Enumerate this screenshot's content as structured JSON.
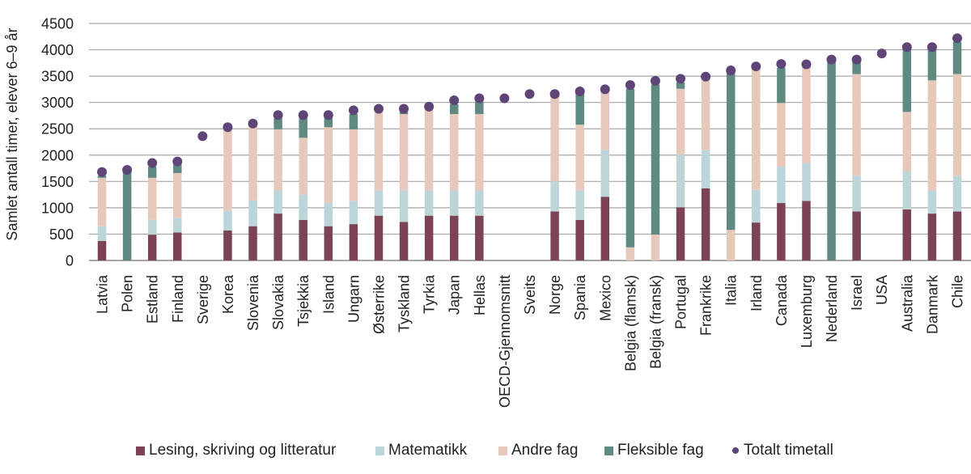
{
  "chart_data": {
    "type": "bar",
    "stacked": true,
    "title": "",
    "xlabel": "",
    "ylabel": "Samlet antall timer, elever 6–9 år",
    "ylim": [
      0,
      4500
    ],
    "yticks": [
      "0",
      "500",
      "1000",
      "1500",
      "2000",
      "2500",
      "3000",
      "3500",
      "4000",
      "4500"
    ],
    "ytick_values": [
      0,
      500,
      1000,
      1500,
      2000,
      2500,
      3000,
      3500,
      4000,
      4500
    ],
    "grid": true,
    "legend_position": "bottom",
    "categories": [
      "Latvia",
      "Polen",
      "Estland",
      "Finland",
      "Sverige",
      "Korea",
      "Slovenia",
      "Slovakia",
      "Tsjekkia",
      "Island",
      "Ungarn",
      "Østerrike",
      "Tyskland",
      "Tyrkia",
      "Japan",
      "Hellas",
      "OECD-Gjennomsnitt",
      "Sveits",
      "Norge",
      "Spania",
      "Mexico",
      "Belgia (flamsk)",
      "Belgia (fransk)",
      "Portugal",
      "Frankrike",
      "Italia",
      "Irland",
      "Canada",
      "Luxemburg",
      "Nederland",
      "Israel",
      "USA",
      "Australia",
      "Danmark",
      "Chile"
    ],
    "series": [
      {
        "name": "Lesing, skriving og litteratur",
        "kind": "bar",
        "color": "#7b4355",
        "values": [
          370,
          0,
          490,
          530,
          0,
          570,
          650,
          890,
          770,
          650,
          690,
          850,
          730,
          850,
          850,
          850,
          0,
          0,
          930,
          770,
          1210,
          0,
          0,
          1010,
          1370,
          0,
          720,
          1090,
          1130,
          0,
          930,
          0,
          970,
          890,
          930
        ]
      },
      {
        "name": "Matematikk",
        "kind": "bar",
        "color": "#bcd5d9",
        "values": [
          280,
          0,
          280,
          280,
          0,
          370,
          490,
          440,
          480,
          440,
          440,
          480,
          600,
          480,
          480,
          480,
          0,
          0,
          570,
          560,
          890,
          0,
          0,
          1000,
          730,
          0,
          620,
          690,
          720,
          0,
          680,
          0,
          720,
          440,
          680
        ]
      },
      {
        "name": "Andre fag",
        "kind": "bar",
        "color": "#e7c9bb",
        "values": [
          920,
          0,
          800,
          850,
          0,
          1570,
          1440,
          1160,
          1080,
          1440,
          1360,
          1490,
          1450,
          1570,
          1450,
          1450,
          0,
          0,
          1600,
          1250,
          1120,
          250,
          490,
          1250,
          1380,
          580,
          2320,
          1210,
          1860,
          0,
          1930,
          0,
          1130,
          2090,
          1930
        ]
      },
      {
        "name": "Fleksible fag",
        "kind": "bar",
        "color": "#5f8a82",
        "values": [
          40,
          1690,
          210,
          160,
          0,
          0,
          0,
          210,
          370,
          210,
          290,
          0,
          40,
          0,
          190,
          240,
          0,
          0,
          40,
          610,
          0,
          3010,
          2850,
          120,
          0,
          3000,
          0,
          670,
          0,
          3780,
          240,
          0,
          1190,
          590,
          610
        ]
      },
      {
        "name": "Totalt timetall",
        "kind": "dot",
        "color": "#5f4478",
        "values": [
          1680,
          1720,
          1850,
          1880,
          2360,
          2530,
          2600,
          2760,
          2760,
          2760,
          2850,
          2880,
          2880,
          2920,
          3040,
          3080,
          3080,
          3160,
          3160,
          3210,
          3250,
          3330,
          3410,
          3450,
          3490,
          3610,
          3685,
          3730,
          3725,
          3815,
          3815,
          3930,
          4050,
          4050,
          4220
        ]
      }
    ]
  },
  "legend": [
    {
      "label": "Lesing, skriving og litteratur",
      "color": "#7b4355",
      "marker": "square"
    },
    {
      "label": "Matematikk",
      "color": "#bcd5d9",
      "marker": "square"
    },
    {
      "label": "Andre fag",
      "color": "#e7c9bb",
      "marker": "square"
    },
    {
      "label": "Fleksible fag",
      "color": "#5f8a82",
      "marker": "square"
    },
    {
      "label": "Totalt timetall",
      "color": "#5f4478",
      "marker": "dot"
    }
  ]
}
